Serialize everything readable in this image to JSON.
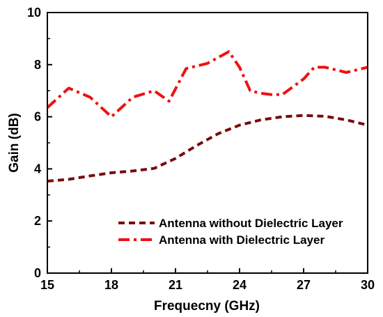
{
  "chart_data": {
    "type": "line",
    "title": "",
    "xlabel": "Frequecny (GHz)",
    "ylabel": "Gain (dB)",
    "xlim": [
      15,
      30
    ],
    "ylim": [
      0,
      10
    ],
    "x_ticks": [
      "15",
      "18",
      "21",
      "24",
      "27",
      "30"
    ],
    "y_ticks": [
      "0",
      "2",
      "4",
      "6",
      "8",
      "10"
    ],
    "grid": false,
    "legend_position": "bottom-right",
    "series": [
      {
        "name": "Antenna without Dielectric Layer",
        "color": "#7a0a0a",
        "style": "dashed",
        "x": [
          15,
          16,
          17,
          18,
          19,
          20,
          21,
          22,
          23,
          24,
          25,
          26,
          27,
          28,
          29,
          30
        ],
        "y": [
          3.53,
          3.6,
          3.73,
          3.85,
          3.92,
          4.02,
          4.4,
          4.9,
          5.35,
          5.68,
          5.88,
          6.0,
          6.05,
          6.02,
          5.88,
          5.68
        ]
      },
      {
        "name": "Antenna with Dielectric Layer",
        "color": "#ee1111",
        "style": "dash-dot",
        "x": [
          15,
          16,
          17,
          18,
          19,
          20,
          20.7,
          21.5,
          22.5,
          23.5,
          24,
          24.5,
          25,
          25.5,
          26,
          26.5,
          27,
          27.5,
          28,
          29,
          30
        ],
        "y": [
          6.35,
          7.1,
          6.75,
          6.0,
          6.75,
          7.0,
          6.6,
          7.85,
          8.05,
          8.5,
          7.9,
          7.0,
          6.9,
          6.85,
          6.85,
          7.15,
          7.45,
          7.9,
          7.9,
          7.7,
          7.9
        ]
      }
    ]
  }
}
